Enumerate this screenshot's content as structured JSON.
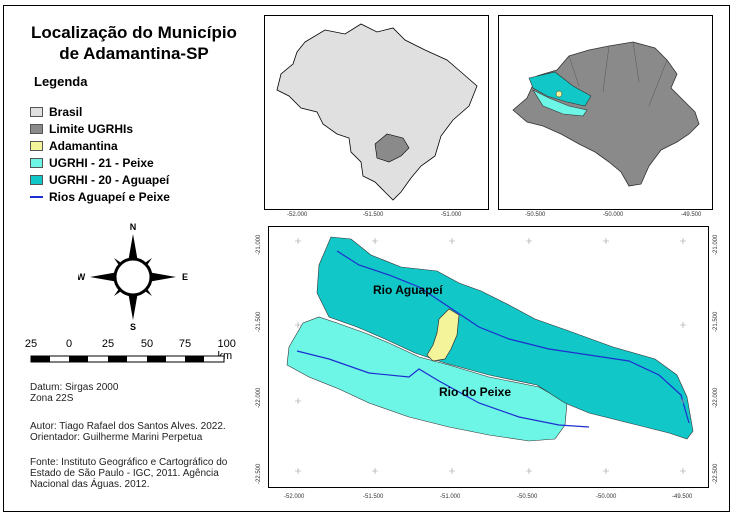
{
  "title": {
    "line1": "Localização do Município",
    "line2": "de Adamantina-SP"
  },
  "legend": {
    "title": "Legenda",
    "items": [
      {
        "label": "Brasil",
        "color": "#e0e0e0",
        "kind": "fill"
      },
      {
        "label": "Limite UGRHIs",
        "color": "#8a8a8a",
        "kind": "fill"
      },
      {
        "label": "Adamantina",
        "color": "#f4f59a",
        "kind": "fill"
      },
      {
        "label": "UGRHI - 21 - Peixe",
        "color": "#6df5e6",
        "kind": "fill"
      },
      {
        "label": "UGRHI - 20 - Aguapeí",
        "color": "#12c7c7",
        "kind": "fill"
      },
      {
        "label": "Rios Aguapeí e Peixe",
        "color": "#1d2fd0",
        "kind": "line"
      }
    ]
  },
  "compass": {
    "n": "N",
    "s": "S",
    "e": "E",
    "w": "W"
  },
  "scalebar": {
    "labels": [
      "25",
      "0",
      "25",
      "50",
      "75",
      "100 km"
    ]
  },
  "info": {
    "datum_line1": "Datum: Sirgas 2000",
    "datum_line2": "Zona 22S",
    "author_line1": "Autor: Tiago Rafael dos Santos Alves. 2022.",
    "author_line2": "Orientador: Guilherme Marini Perpetua",
    "source_line1": "Fonte: Instituto Geográfico e Cartográfico do",
    "source_line2": "Estado de São Paulo - IGC, 2011. Agência",
    "source_line3": "Nacional das Águas. 2012."
  },
  "inset_brazil": {
    "xticks": [
      "-52.000",
      "-51.500",
      "-51.000"
    ]
  },
  "inset_sp": {
    "xticks": [
      "-50.500",
      "-50.000",
      "-49.500"
    ]
  },
  "main_map": {
    "xticks": [
      "-52.000",
      "-51.500",
      "-51.000",
      "-50.500",
      "-50.000",
      "-49.500"
    ],
    "yticks_left": [
      "-21.000",
      "-21.500",
      "-22.000",
      "-22.500"
    ],
    "yticks_right": [
      "-21.000",
      "-21.500",
      "-22.000",
      "-22.500"
    ],
    "label_aguapei": "Rio Aguapeí",
    "label_peixe": "Rio do Peixe"
  },
  "colors": {
    "brasil": "#e0e0e0",
    "ugrhi": "#8a8a8a",
    "adamantina": "#f4f59a",
    "peixe": "#6df5e6",
    "aguapei": "#12c7c7",
    "river": "#1d2fd0"
  }
}
